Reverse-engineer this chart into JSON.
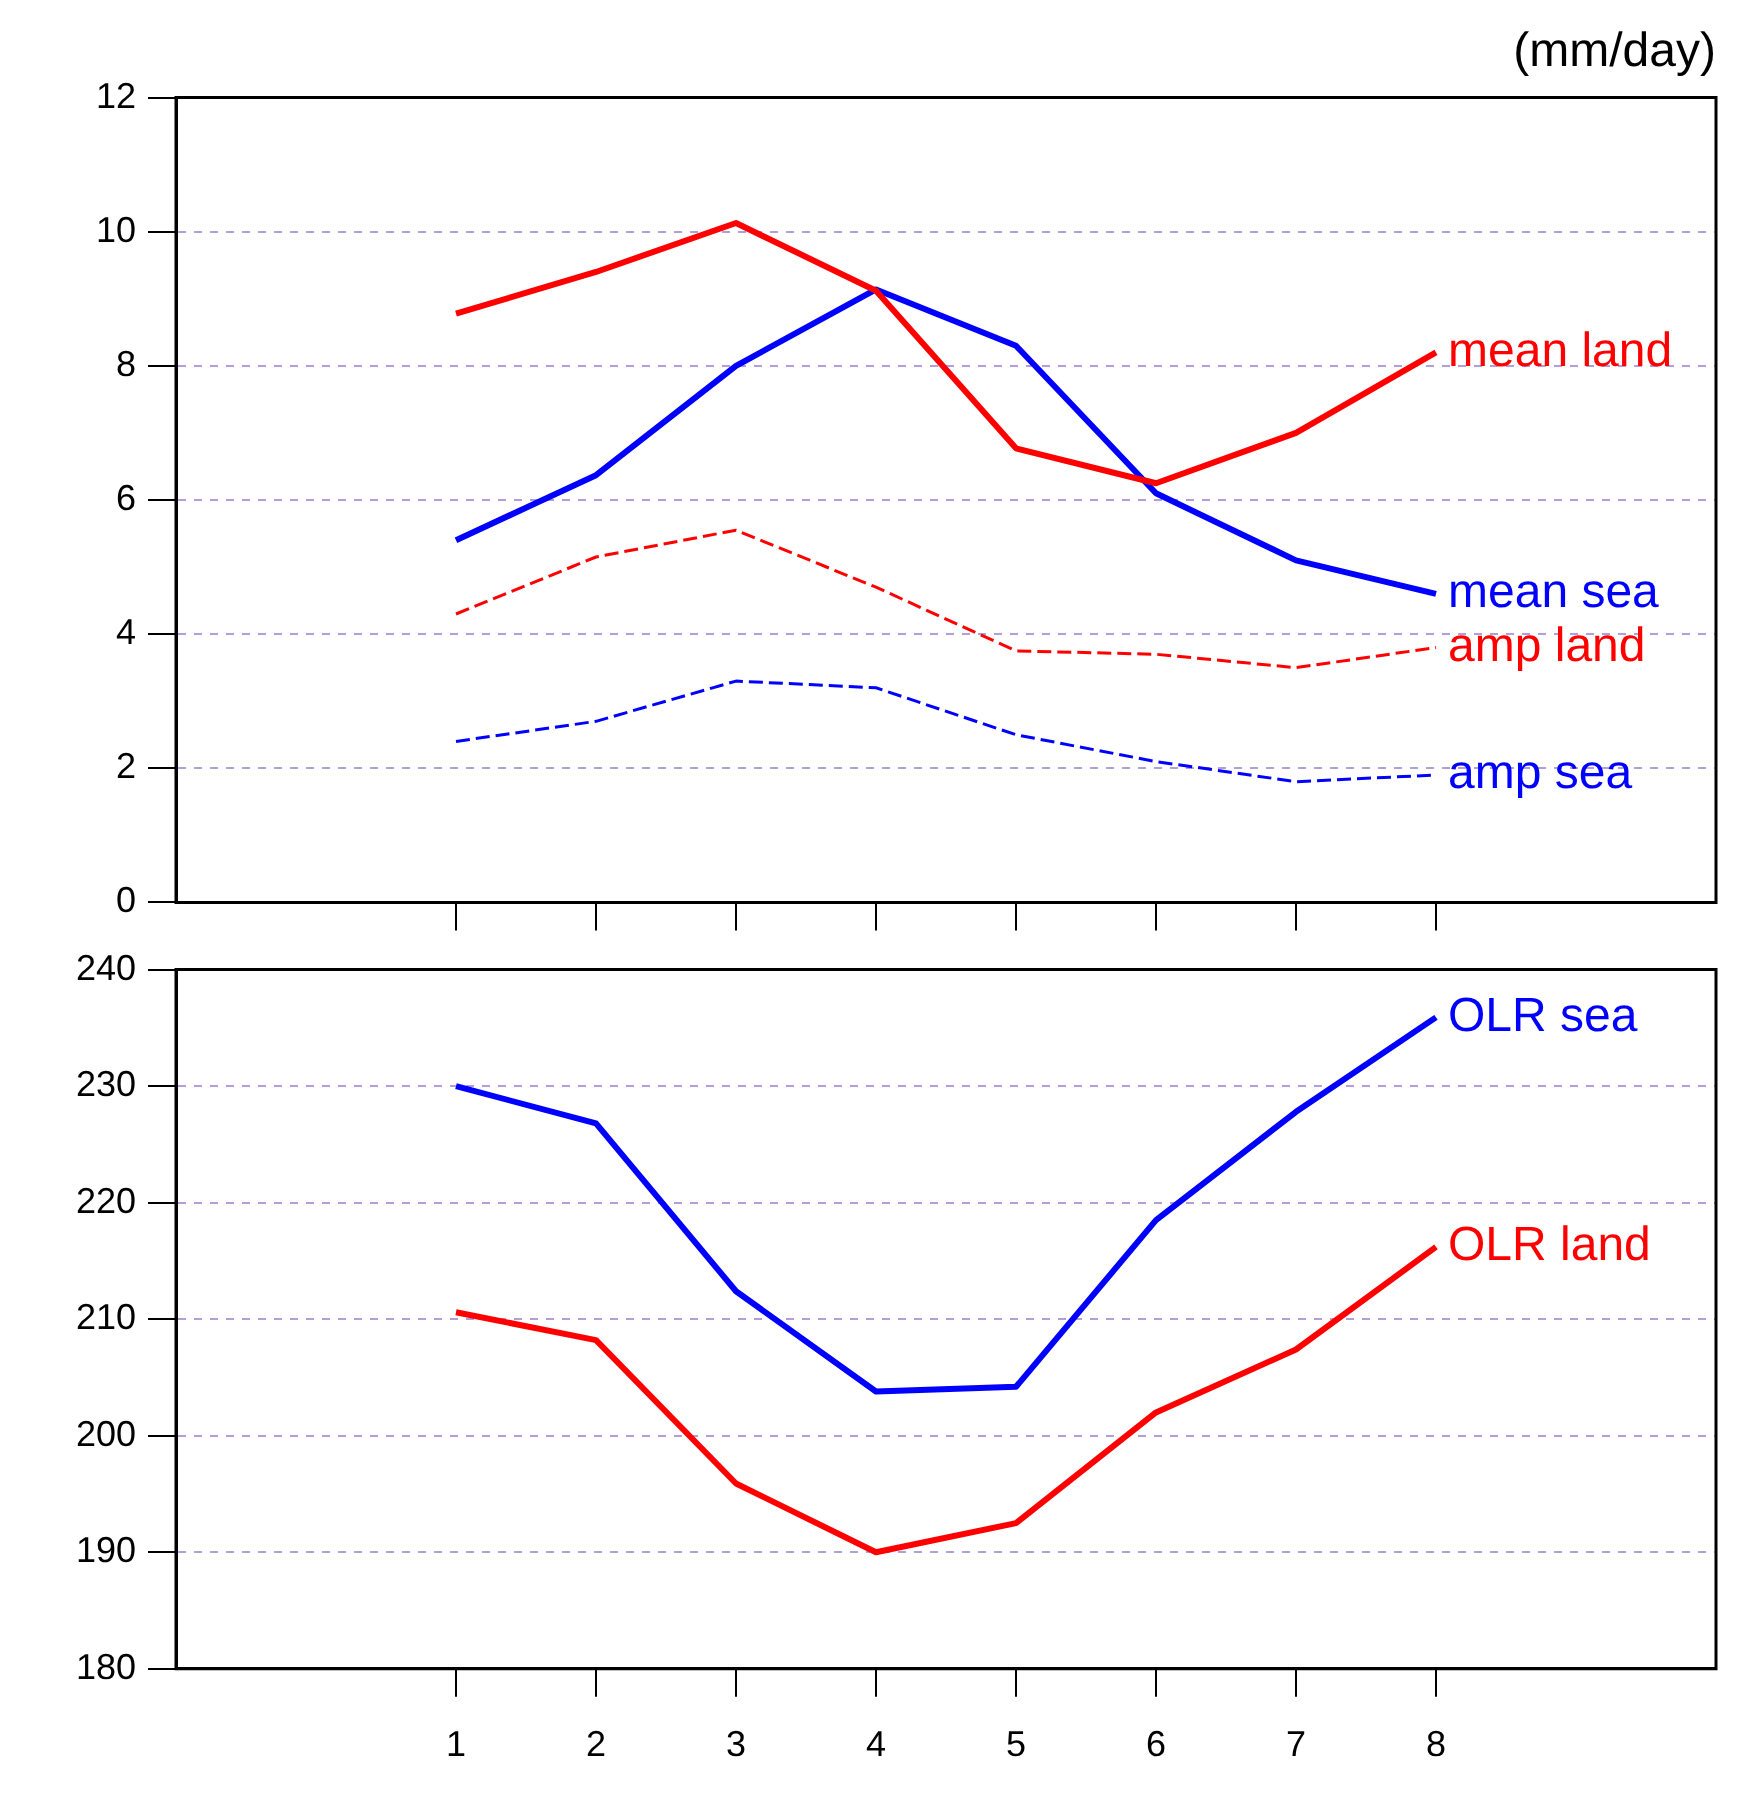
{
  "chart_data": [
    {
      "type": "line",
      "title": "(mm/day)",
      "x": [
        1,
        2,
        3,
        4,
        5,
        6,
        7,
        8
      ],
      "xlim": [
        -1,
        10
      ],
      "xticks": [
        1,
        2,
        3,
        4,
        5,
        6,
        7,
        8
      ],
      "ylim": [
        0,
        12
      ],
      "yticks": [
        0,
        2,
        4,
        6,
        8,
        10,
        12
      ],
      "grid": "y",
      "tick_labels": "y",
      "series": [
        {
          "name": "mean land",
          "color": "#ff0000",
          "line_style": "solid",
          "values": [
            8.78,
            9.4,
            10.13,
            9.12,
            6.77,
            6.25,
            7.0,
            8.2
          ]
        },
        {
          "name": "mean sea",
          "color": "#0000ff",
          "line_style": "solid",
          "values": [
            5.4,
            6.37,
            8.0,
            9.14,
            8.3,
            6.1,
            5.1,
            4.6
          ]
        },
        {
          "name": "amp land",
          "color": "#ff0000",
          "line_style": "dashed",
          "values": [
            4.3,
            5.15,
            5.55,
            4.7,
            3.75,
            3.7,
            3.5,
            3.8
          ]
        },
        {
          "name": "amp sea",
          "color": "#0000ff",
          "line_style": "dashed",
          "values": [
            2.4,
            2.7,
            3.3,
            3.2,
            2.5,
            2.1,
            1.8,
            1.9
          ]
        }
      ]
    },
    {
      "type": "line",
      "x": [
        1,
        2,
        3,
        4,
        5,
        6,
        7,
        8
      ],
      "xlim": [
        -1,
        10
      ],
      "xticks": [
        1,
        2,
        3,
        4,
        5,
        6,
        7,
        8
      ],
      "ylim": [
        180,
        240
      ],
      "yticks": [
        180,
        190,
        200,
        210,
        220,
        230,
        240
      ],
      "grid": "y",
      "series": [
        {
          "name": "OLR sea",
          "color": "#0000ff",
          "line_style": "solid",
          "values": [
            230.0,
            226.8,
            212.4,
            203.8,
            204.2,
            218.5,
            227.8,
            235.9
          ]
        },
        {
          "name": "OLR land",
          "color": "#ff0000",
          "line_style": "solid",
          "values": [
            210.6,
            208.2,
            195.9,
            190.0,
            192.5,
            202.0,
            207.4,
            216.2
          ]
        }
      ]
    }
  ]
}
